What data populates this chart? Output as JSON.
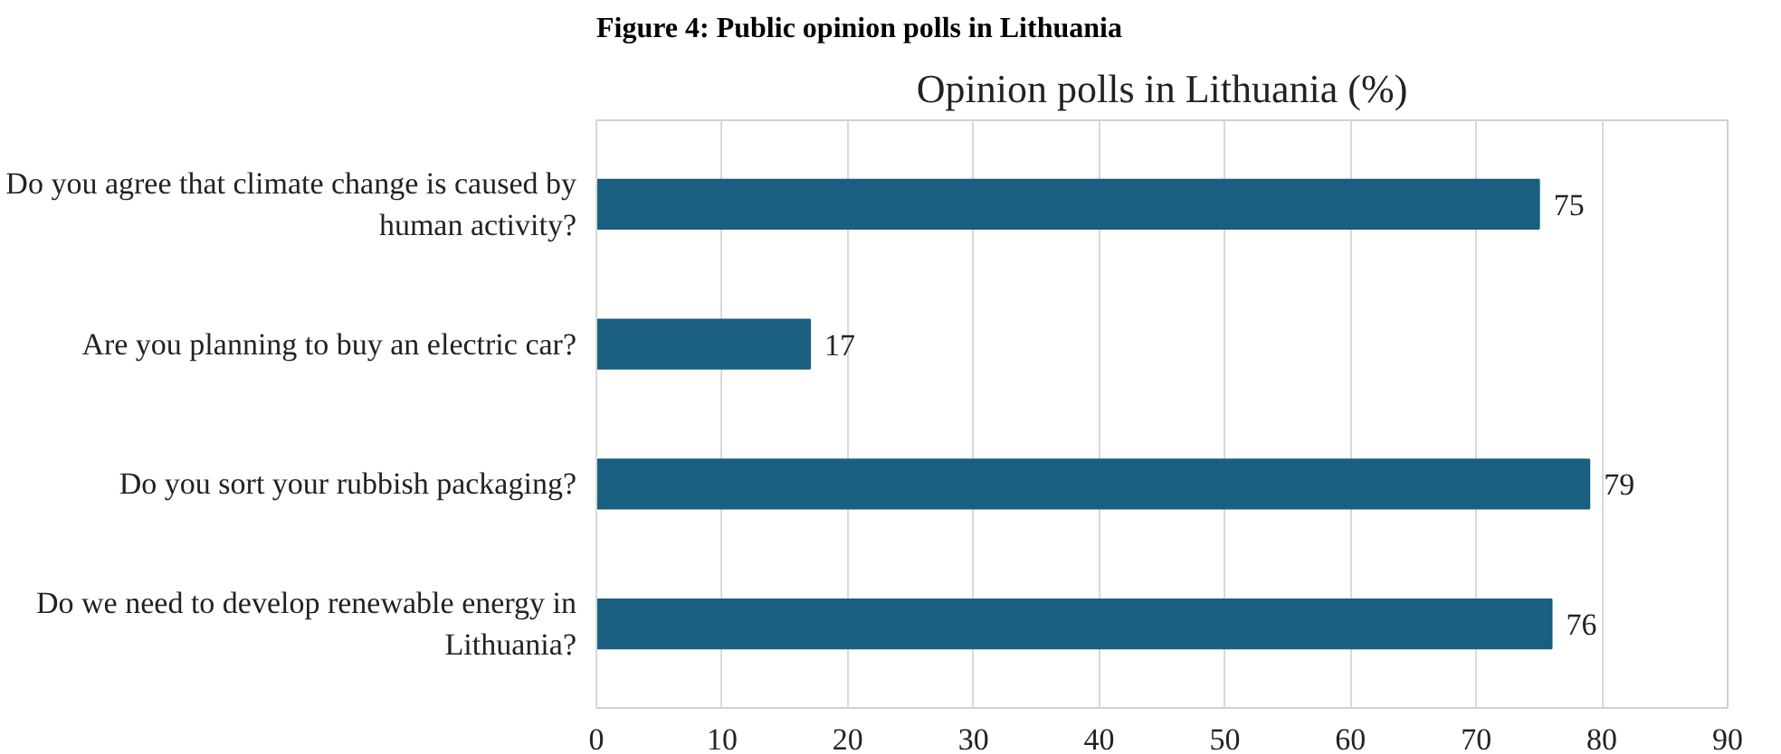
{
  "chart_data": {
    "type": "bar",
    "orientation": "horizontal",
    "title": "Opinion polls in Lithuania (%)",
    "annotations": [
      "Figure 4: Public opinion polls in Lithuania"
    ],
    "categories": [
      "Do you agree that climate change is caused by human activity?",
      "Are you planning to buy an electric car?",
      "Do you sort your rubbish packaging?",
      "Do we need to develop renewable energy in Lithuania?"
    ],
    "values": [
      75,
      17,
      79,
      76
    ],
    "color": "#1a5f80",
    "xlim": [
      0,
      90
    ],
    "xticks": [
      0,
      10,
      20,
      30,
      40,
      50,
      60,
      70,
      80,
      90
    ],
    "grid": "x",
    "data_labels": true
  }
}
